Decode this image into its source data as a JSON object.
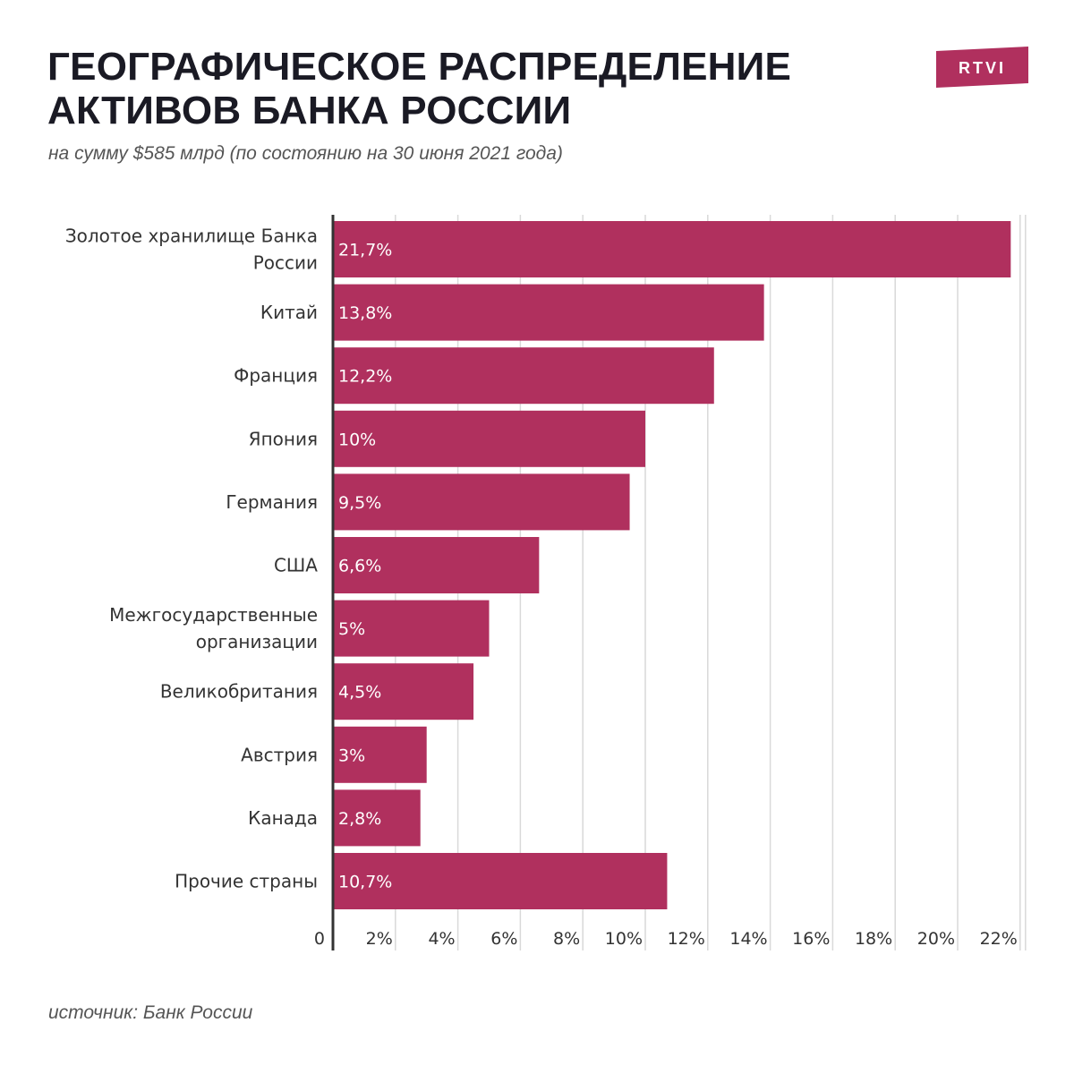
{
  "header": {
    "title_line1": "ГЕОГРАФИЧЕСКОЕ РАСПРЕДЕЛЕНИЕ",
    "title_line2": "АКТИВОВ БАНКА РОССИИ",
    "subtitle": "на сумму $585 млрд (по состоянию на 30 июня 2021 года)",
    "logo_text": "RTVI"
  },
  "footer": {
    "source": "источник: Банк России"
  },
  "colors": {
    "bar": "#b0305e",
    "logo": "#b0305e",
    "grid": "#d9d9d9",
    "axis": "#333333"
  },
  "chart_data": {
    "type": "bar",
    "orientation": "horizontal",
    "categories": [
      [
        "Золотое хранилище Банка",
        "России"
      ],
      [
        "Китай"
      ],
      [
        "Франция"
      ],
      [
        "Япония"
      ],
      [
        "Германия"
      ],
      [
        "США"
      ],
      [
        "Межгосударственные",
        "организации"
      ],
      [
        "Великобритания"
      ],
      [
        "Австрия"
      ],
      [
        "Канада"
      ],
      [
        "Прочие страны"
      ]
    ],
    "values": [
      21.7,
      13.8,
      12.2,
      10,
      9.5,
      6.6,
      5,
      4.5,
      3,
      2.8,
      10.7
    ],
    "value_labels": [
      "21,7%",
      "13,8%",
      "12,2%",
      "10%",
      "9,5%",
      "6,6%",
      "5%",
      "4,5%",
      "3%",
      "2,8%",
      "10,7%"
    ],
    "xlim": [
      0,
      22
    ],
    "x_ticks": [
      0,
      2,
      4,
      6,
      8,
      10,
      12,
      14,
      16,
      18,
      20,
      22
    ],
    "x_tick_labels": [
      "0",
      "2%",
      "4%",
      "6%",
      "8%",
      "10%",
      "12%",
      "14%",
      "16%",
      "18%",
      "20%",
      "22%"
    ],
    "grid": true,
    "legend": "none"
  }
}
